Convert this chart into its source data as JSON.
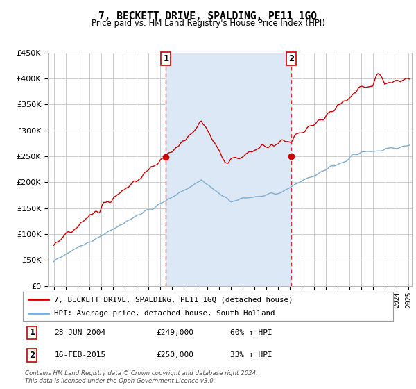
{
  "title": "7, BECKETT DRIVE, SPALDING, PE11 1GQ",
  "subtitle": "Price paid vs. HM Land Registry's House Price Index (HPI)",
  "background_color": "#ffffff",
  "plot_bg_color": "#ffffff",
  "shaded_color": "#dce8f5",
  "red_line_label": "7, BECKETT DRIVE, SPALDING, PE11 1GQ (detached house)",
  "blue_line_label": "HPI: Average price, detached house, South Holland",
  "sale1_label": "1",
  "sale1_date": "28-JUN-2004",
  "sale1_price": "£249,000",
  "sale1_hpi": "60% ↑ HPI",
  "sale1_year": 2004.49,
  "sale1_value": 249000,
  "sale2_label": "2",
  "sale2_date": "16-FEB-2015",
  "sale2_price": "£250,000",
  "sale2_hpi": "33% ↑ HPI",
  "sale2_year": 2015.12,
  "sale2_value": 250000,
  "ylim": [
    0,
    450000
  ],
  "xlim_start": 1994.5,
  "xlim_end": 2025.3,
  "yticks": [
    0,
    50000,
    100000,
    150000,
    200000,
    250000,
    300000,
    350000,
    400000,
    450000
  ],
  "footer": "Contains HM Land Registry data © Crown copyright and database right 2024.\nThis data is licensed under the Open Government Licence v3.0.",
  "red_color": "#cc0000",
  "blue_color": "#7dadd4",
  "dashed_color": "#dd3333",
  "grid_color": "#cccccc"
}
